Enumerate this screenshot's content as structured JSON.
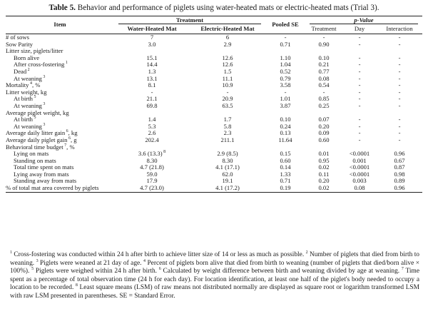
{
  "caption": {
    "label": "Table 5.",
    "text": "Behavior and performance of piglets using water-heated mats or electric-heated mats (Trial 3)."
  },
  "header": {
    "item": "Item",
    "treatment_group": "Treatment",
    "water": "Water-Heated Mat",
    "electric": "Electric-Heated Mat",
    "pooled_se": "Pooled SE",
    "pvalue_group": "p-Value",
    "p_treatment": "Treatment",
    "p_day": "Day",
    "p_interaction": "Interaction"
  },
  "rows": [
    {
      "item": "# of sows",
      "sup": "",
      "indent": false,
      "water": "7",
      "water_sup": "",
      "electric": "6",
      "electric_sup": "",
      "se": "-",
      "treatment": "-",
      "day": "-",
      "interaction": "-"
    },
    {
      "item": "Sow Parity",
      "sup": "",
      "indent": false,
      "water": "3.0",
      "water_sup": "",
      "electric": "2.9",
      "electric_sup": "",
      "se": "0.71",
      "treatment": "0.90",
      "day": "-",
      "interaction": "-"
    },
    {
      "item": "Litter size, piglets/litter",
      "sup": "",
      "indent": false,
      "water": "",
      "water_sup": "",
      "electric": "",
      "electric_sup": "",
      "se": "",
      "treatment": "",
      "day": "",
      "interaction": ""
    },
    {
      "item": "Born alive",
      "sup": "",
      "indent": true,
      "water": "15.1",
      "water_sup": "",
      "electric": "12.6",
      "electric_sup": "",
      "se": "1.10",
      "treatment": "0.10",
      "day": "-",
      "interaction": "-"
    },
    {
      "item": "After cross-fostering",
      "sup": "1",
      "indent": true,
      "water": "14.4",
      "water_sup": "",
      "electric": "12.6",
      "electric_sup": "",
      "se": "1.04",
      "treatment": "0.21",
      "day": "-",
      "interaction": "-"
    },
    {
      "item": "Dead",
      "sup": "2",
      "indent": true,
      "water": "1.3",
      "water_sup": "",
      "electric": "1.5",
      "electric_sup": "",
      "se": "0.52",
      "treatment": "0.77",
      "day": "-",
      "interaction": "-"
    },
    {
      "item": "At weaning",
      "sup": "3",
      "indent": true,
      "water": "13.1",
      "water_sup": "",
      "electric": "11.1",
      "electric_sup": "",
      "se": "0.79",
      "treatment": "0.08",
      "day": "-",
      "interaction": "-"
    },
    {
      "item": "Mortality",
      "sup": "4",
      "suffix": ", %",
      "indent": false,
      "water": "8.1",
      "water_sup": "",
      "electric": "10.9",
      "electric_sup": "",
      "se": "3.58",
      "treatment": "0.54",
      "day": "-",
      "interaction": "-"
    },
    {
      "item": "Litter weight, kg",
      "sup": "",
      "indent": false,
      "water": "-",
      "water_sup": "",
      "electric": "-",
      "electric_sup": "",
      "se": "-",
      "treatment": "-",
      "day": "-",
      "interaction": "-"
    },
    {
      "item": "At birth",
      "sup": "5",
      "indent": true,
      "water": "21.1",
      "water_sup": "",
      "electric": "20.9",
      "electric_sup": "",
      "se": "1.01",
      "treatment": "0.85",
      "day": "-",
      "interaction": "-"
    },
    {
      "item": "At weaning",
      "sup": "3",
      "indent": true,
      "water": "69.8",
      "water_sup": "",
      "electric": "63.5",
      "electric_sup": "",
      "se": "3.87",
      "treatment": "0.25",
      "day": "-",
      "interaction": "-"
    },
    {
      "item": "Average piglet weight, kg",
      "sup": "",
      "indent": false,
      "water": "",
      "water_sup": "",
      "electric": "",
      "electric_sup": "",
      "se": "",
      "treatment": "",
      "day": "",
      "interaction": ""
    },
    {
      "item": "At birth",
      "sup": "5",
      "indent": true,
      "water": "1.4",
      "water_sup": "",
      "electric": "1.7",
      "electric_sup": "",
      "se": "0.10",
      "treatment": "0.07",
      "day": "-",
      "interaction": "-"
    },
    {
      "item": "At weaning",
      "sup": "3",
      "indent": true,
      "water": "5.3",
      "water_sup": "",
      "electric": "5.8",
      "electric_sup": "",
      "se": "0.24",
      "treatment": "0.20",
      "day": "-",
      "interaction": "-"
    },
    {
      "item": "Average daily litter gain",
      "sup": "6",
      "suffix": ", kg",
      "indent": false,
      "water": "2.6",
      "water_sup": "",
      "electric": "2.3",
      "electric_sup": "",
      "se": "0.13",
      "treatment": "0.09",
      "day": "-",
      "interaction": "-"
    },
    {
      "item": "Average daily piglet gain",
      "sup": "6",
      "suffix": ", g",
      "indent": false,
      "water": "202.4",
      "water_sup": "",
      "electric": "211.1",
      "electric_sup": "",
      "se": "11.64",
      "treatment": "0.60",
      "day": "-",
      "interaction": "-"
    },
    {
      "item": "Behavioral time budget",
      "sup": "7",
      "suffix": ", %",
      "indent": false,
      "water": "",
      "water_sup": "",
      "electric": "",
      "electric_sup": "",
      "se": "",
      "treatment": "",
      "day": "",
      "interaction": ""
    },
    {
      "item": "Lying on mats",
      "sup": "",
      "indent": true,
      "water": "3.6 (13.3)",
      "water_sup": "8",
      "electric": "2.9 (8.5)",
      "electric_sup": "",
      "se": "0.15",
      "treatment": "0.01",
      "day": "<0.0001",
      "interaction": "0.96"
    },
    {
      "item": "Standing on mats",
      "sup": "",
      "indent": true,
      "water": "8.30",
      "water_sup": "",
      "electric": "8.30",
      "electric_sup": "",
      "se": "0.60",
      "treatment": "0.95",
      "day": "0.001",
      "interaction": "0.67"
    },
    {
      "item": "Total time spent on mats",
      "sup": "",
      "indent": true,
      "water": "4.7 (21.8)",
      "water_sup": "",
      "electric": "4.1 (17.1)",
      "electric_sup": "",
      "se": "0.14",
      "treatment": "0.02",
      "day": "<0.0001",
      "interaction": "0.87"
    },
    {
      "item": "Lying away from mats",
      "sup": "",
      "indent": true,
      "water": "59.0",
      "water_sup": "",
      "electric": "62.0",
      "electric_sup": "",
      "se": "1.33",
      "treatment": "0.11",
      "day": "<0.0001",
      "interaction": "0.98"
    },
    {
      "item": "Standing away from mats",
      "sup": "",
      "indent": true,
      "water": "17.9",
      "water_sup": "",
      "electric": "19.1",
      "electric_sup": "",
      "se": "0.71",
      "treatment": "0.20",
      "day": "0.003",
      "interaction": "0.89"
    },
    {
      "item": "% of total mat area covered by piglets",
      "sup": "",
      "indent": false,
      "water": "4.7 (23.0)",
      "water_sup": "",
      "electric": "4.1 (17.2)",
      "electric_sup": "",
      "se": "0.19",
      "treatment": "0.02",
      "day": "0.08",
      "interaction": "0.96"
    }
  ],
  "footnotes": [
    {
      "sup": "1",
      "text": " Cross-fostering was conducted within 24 h after birth to achieve litter size of 14 or less as much as possible. "
    },
    {
      "sup": "2",
      "text": " Number of piglets that died from birth to weaning. "
    },
    {
      "sup": "3",
      "text": " Piglets were weaned at 21 day of age. "
    },
    {
      "sup": "4",
      "text": " Percent of piglets born alive that died from birth to weaning (number of piglets that died/born alive × 100%). "
    },
    {
      "sup": "5",
      "text": " Piglets were weighed within 24 h after birth. "
    },
    {
      "sup": "6",
      "text": " Calculated by weight difference between birth and weaning divided by age at weaning. "
    },
    {
      "sup": "7",
      "text": " Time spent as a percentage of total observation time (24 h for each day). For location identification, at least one half of the piglet's body needed to occupy a location to be recorded. "
    },
    {
      "sup": "8",
      "text": " Least square means (LSM) of raw means not distributed normally are displayed as square root or logarithm transformed LSM with raw LSM presented in parentheses. SE = Standard Error."
    }
  ]
}
